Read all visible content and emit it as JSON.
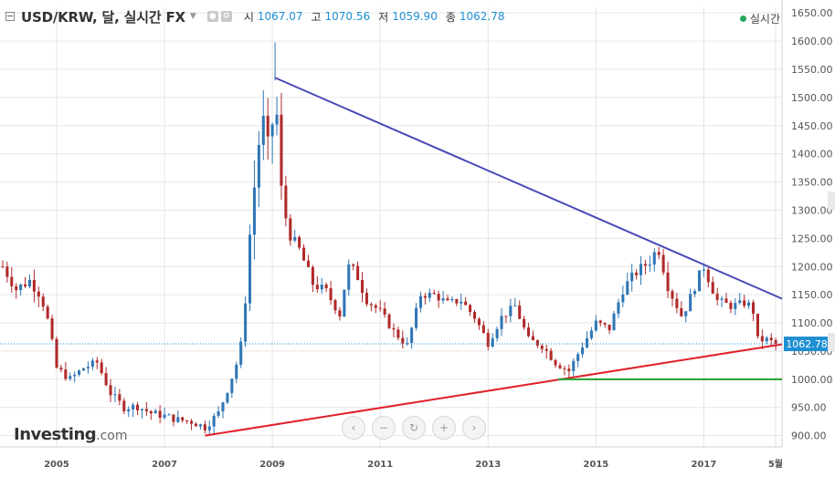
{
  "header": {
    "title": "USD/KRW, 달, 실시간 FX",
    "ohlc": [
      {
        "label": "시",
        "value": "1067.07"
      },
      {
        "label": "고",
        "value": "1070.56"
      },
      {
        "label": "저",
        "value": "1059.90"
      },
      {
        "label": "종",
        "value": "1062.78"
      }
    ],
    "realtime_label": "실시간",
    "realtime_color": "#27a75d"
  },
  "logo": {
    "main": "Investing",
    "suffix": ".com"
  },
  "controls": [
    "‹",
    "−",
    "↻",
    "+",
    "›"
  ],
  "colors": {
    "up": "#2f76b5",
    "down": "#b02a2a",
    "triangle_upper": "#4a4ab8",
    "triangle_lower": "#e0202a",
    "support": "#20a030",
    "last_price": "#1e8fd3",
    "grid": "#e6e6e6"
  },
  "chart_data": {
    "type": "candlestick",
    "title": "USD/KRW, 달, 실시간 FX",
    "y_axis": {
      "min": 880,
      "max": 1660,
      "ticks": [
        "900.00",
        "950.00",
        "1000.00",
        "1050.00",
        "1100.00",
        "1150.00",
        "1200.00",
        "1250.00",
        "1300.00",
        "1350.00",
        "1400.00",
        "1450.00",
        "1500.00",
        "1550.00",
        "1600.00",
        "1650.00"
      ]
    },
    "x_axis": {
      "start": 2003.95,
      "end": 2018.45,
      "ticks": [
        {
          "label": "2005",
          "x": 2005.0
        },
        {
          "label": "2007",
          "x": 2007.0
        },
        {
          "label": "2009",
          "x": 2009.0
        },
        {
          "label": "2011",
          "x": 2011.0
        },
        {
          "label": "2013",
          "x": 2013.0
        },
        {
          "label": "2015",
          "x": 2015.0
        },
        {
          "label": "2017",
          "x": 2017.0
        },
        {
          "label": "5월",
          "x": 2018.33
        }
      ]
    },
    "last_price": "1062.78",
    "last_price_value": 1062.78,
    "anchors": [
      [
        2004.0,
        1200
      ],
      [
        2004.25,
        1160
      ],
      [
        2004.5,
        1175
      ],
      [
        2004.7,
        1150
      ],
      [
        2004.85,
        1100
      ],
      [
        2005.0,
        1020
      ],
      [
        2005.25,
        1000
      ],
      [
        2005.5,
        1020
      ],
      [
        2005.75,
        1030
      ],
      [
        2006.0,
        975
      ],
      [
        2006.25,
        950
      ],
      [
        2006.5,
        952
      ],
      [
        2006.75,
        940
      ],
      [
        2007.0,
        935
      ],
      [
        2007.25,
        928
      ],
      [
        2007.5,
        925
      ],
      [
        2007.75,
        915
      ],
      [
        2008.0,
        940
      ],
      [
        2008.2,
        990
      ],
      [
        2008.4,
        1045
      ],
      [
        2008.5,
        1140
      ],
      [
        2008.6,
        1280
      ],
      [
        2008.75,
        1420
      ],
      [
        2008.85,
        1460
      ],
      [
        2008.95,
        1380
      ],
      [
        2009.05,
        1530
      ],
      [
        2009.15,
        1340
      ],
      [
        2009.3,
        1260
      ],
      [
        2009.5,
        1230
      ],
      [
        2009.75,
        1170
      ],
      [
        2010.0,
        1155
      ],
      [
        2010.25,
        1115
      ],
      [
        2010.4,
        1200
      ],
      [
        2010.55,
        1190
      ],
      [
        2010.75,
        1140
      ],
      [
        2011.0,
        1120
      ],
      [
        2011.25,
        1085
      ],
      [
        2011.5,
        1060
      ],
      [
        2011.75,
        1150
      ],
      [
        2012.0,
        1150
      ],
      [
        2012.25,
        1135
      ],
      [
        2012.5,
        1140
      ],
      [
        2012.75,
        1110
      ],
      [
        2013.0,
        1065
      ],
      [
        2013.25,
        1110
      ],
      [
        2013.5,
        1130
      ],
      [
        2013.75,
        1070
      ],
      [
        2014.0,
        1060
      ],
      [
        2014.25,
        1030
      ],
      [
        2014.5,
        1015
      ],
      [
        2014.75,
        1060
      ],
      [
        2015.0,
        1100
      ],
      [
        2015.25,
        1090
      ],
      [
        2015.5,
        1160
      ],
      [
        2015.75,
        1190
      ],
      [
        2016.0,
        1210
      ],
      [
        2016.15,
        1235
      ],
      [
        2016.35,
        1160
      ],
      [
        2016.6,
        1110
      ],
      [
        2016.85,
        1170
      ],
      [
        2017.0,
        1200
      ],
      [
        2017.25,
        1140
      ],
      [
        2017.5,
        1130
      ],
      [
        2017.75,
        1135
      ],
      [
        2017.9,
        1130
      ],
      [
        2018.0,
        1070
      ],
      [
        2018.2,
        1070
      ],
      [
        2018.3,
        1062.78
      ]
    ],
    "trendlines": [
      {
        "name": "upper",
        "from": [
          2009.05,
          1535
        ],
        "to": [
          2018.45,
          1143
        ],
        "color": "#4a4ab8"
      },
      {
        "name": "lower",
        "from": [
          2007.75,
          900
        ],
        "to": [
          2018.45,
          1062
        ],
        "color": "#e0202a"
      },
      {
        "name": "support",
        "from": [
          2014.3,
          1000
        ],
        "to": [
          2018.45,
          1000
        ],
        "color": "#20a030"
      }
    ]
  }
}
